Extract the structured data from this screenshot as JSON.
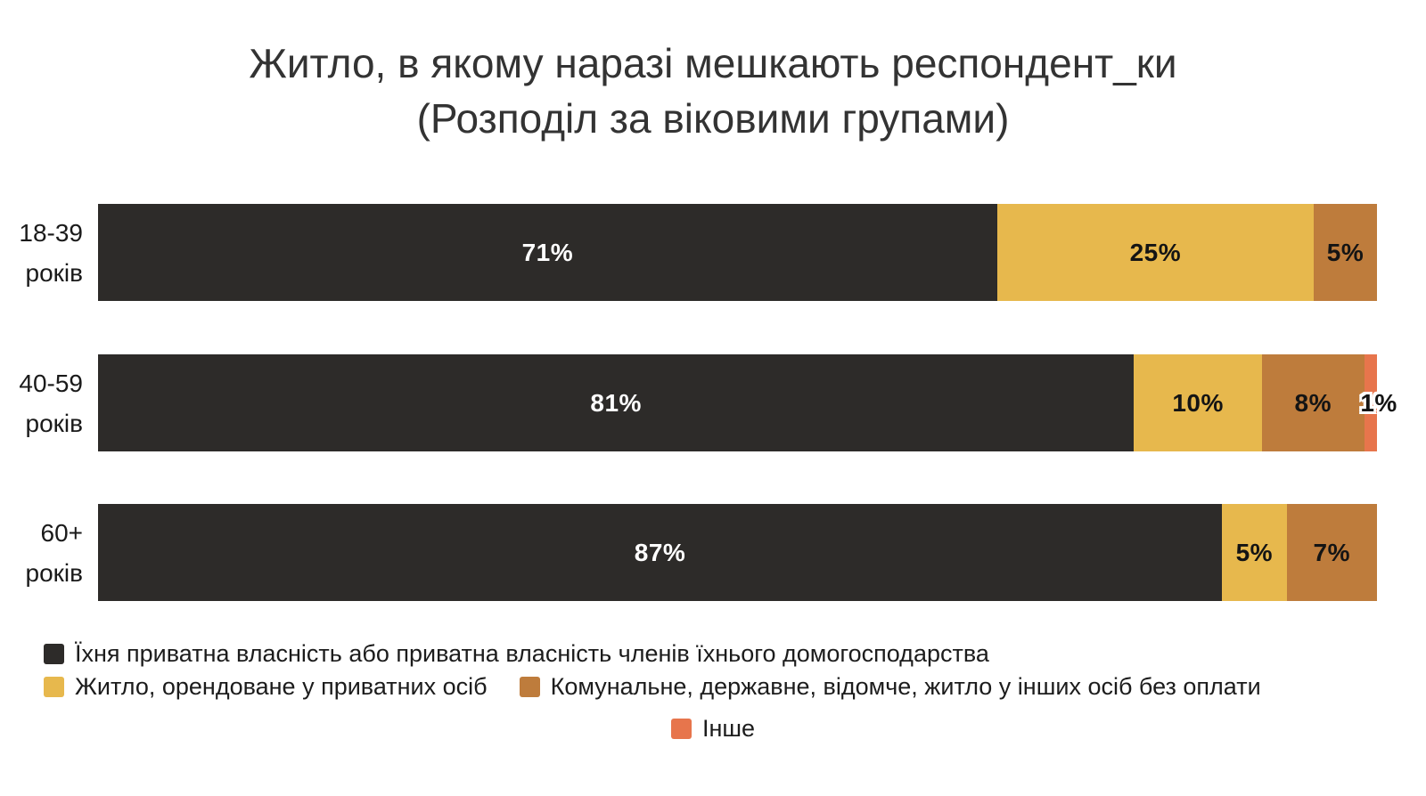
{
  "title": {
    "line1": "Житло, в якому наразі мешкають респондент_ки",
    "line2": "(Розподіл за віковими групами)"
  },
  "colors": {
    "background": "#ffffff",
    "title_text": "#333333",
    "axis_label_text": "#1a1a1a",
    "value_label_on_dark": "#ffffff",
    "value_label_on_light": "#141414"
  },
  "chart_data": {
    "type": "bar",
    "orientation": "horizontal",
    "stacked": true,
    "normalized_to_100": true,
    "value_unit": "%",
    "title": "Житло, в якому наразі мешкають респондент_ки (Розподіл за віковими групами)",
    "legend_position": "bottom",
    "grid": false,
    "categories": [
      "18-39 років",
      "40-59 років",
      "60+ років"
    ],
    "series": [
      {
        "key": "private-property",
        "name": "Їхня приватна власність або приватна власність членів  їхнього домогосподарства",
        "color": "#2D2B29",
        "values": [
          71,
          81,
          87
        ]
      },
      {
        "key": "rented-private",
        "name": "Житло, орендоване у приватних осіб",
        "color": "#E7B84D",
        "values": [
          25,
          10,
          5
        ]
      },
      {
        "key": "communal-state",
        "name": "Комунальне, державне, відомче, житло у інших осіб без оплати",
        "color": "#BE7C3C",
        "values": [
          5,
          8,
          7
        ]
      },
      {
        "key": "other",
        "name": "Інше",
        "color": "#E7754C",
        "values": [
          0,
          1,
          0
        ]
      }
    ],
    "value_labels": {
      "18-39 років": [
        "71%",
        "25%",
        "5%"
      ],
      "40-59 років": [
        "81%",
        "10%",
        "8%",
        "1%"
      ],
      "60+ років": [
        "87%",
        "5%",
        "7%"
      ]
    }
  },
  "legend_rows": [
    [
      0
    ],
    [
      1,
      2
    ],
    [
      3
    ]
  ]
}
